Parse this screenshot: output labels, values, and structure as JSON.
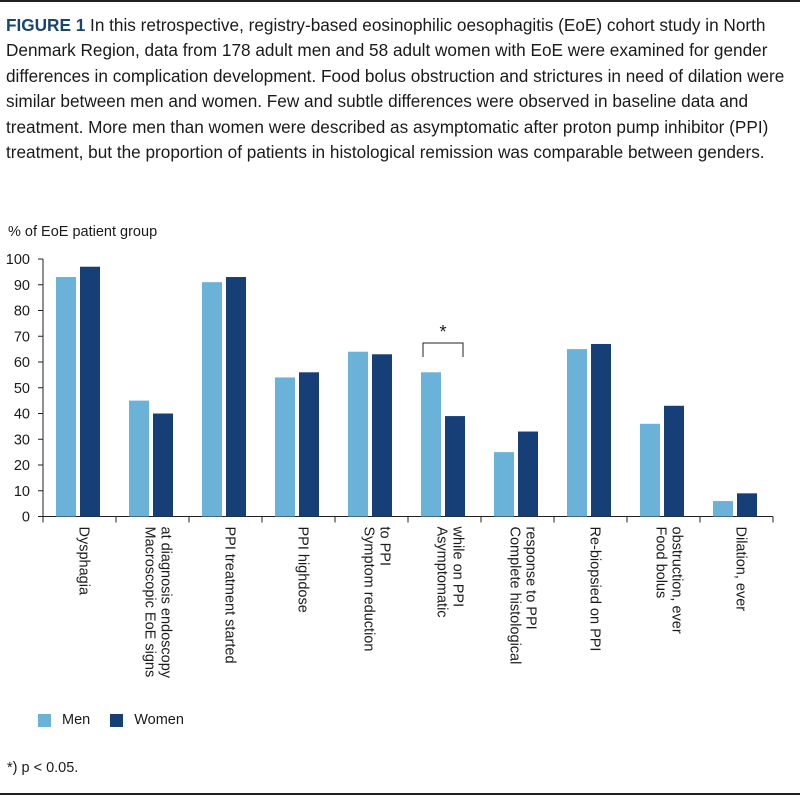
{
  "caption": {
    "label": "FIGURE 1",
    "text": "In this retrospective, registry-based eosinophilic oesophagitis (EoE) cohort study in North Denmark Region, data from 178 adult men and 58 adult women with EoE were examined for gender differences in complication development. Food bolus obstruction and strictures in need of dilation were similar between men and women. Few and subtle differences were observed in baseline data and treatment. More men than women were described as asymptomatic after proton pump inhibitor (PPI) treatment, but the proportion of patients in histological remission was comparable between genders."
  },
  "chart_data": {
    "type": "bar",
    "ylabel": "% of EoE patient group",
    "ylim": [
      0,
      100
    ],
    "yticks": [
      0,
      10,
      20,
      30,
      40,
      50,
      60,
      70,
      80,
      90,
      100
    ],
    "categories": [
      [
        "Dysphagia"
      ],
      [
        "Macroscopic EoE signs",
        "at diagnosis endoscopy"
      ],
      [
        "PPI treatment started"
      ],
      [
        "PPI highdose"
      ],
      [
        "Symptom reduction",
        "to PPI"
      ],
      [
        "Asymptomatic",
        "while on PPI"
      ],
      [
        "Complete histological",
        "response to PPI"
      ],
      [
        "Re-biopsied on PPI"
      ],
      [
        "Food bolus",
        "obstruction, ever"
      ],
      [
        "Dilation, ever"
      ]
    ],
    "series": [
      {
        "name": "Men",
        "color": "#6ab2d8",
        "values": [
          93,
          45,
          91,
          54,
          64,
          56,
          25,
          65,
          36,
          6
        ]
      },
      {
        "name": "Women",
        "color": "#163f77",
        "values": [
          97,
          40,
          93,
          56,
          63,
          39,
          33,
          67,
          43,
          9
        ]
      }
    ],
    "significance_marker": {
      "category_index": 5,
      "symbol": "*"
    },
    "grid": false,
    "legend_position": "bottom-left"
  },
  "footnote": "*) p < 0.05."
}
